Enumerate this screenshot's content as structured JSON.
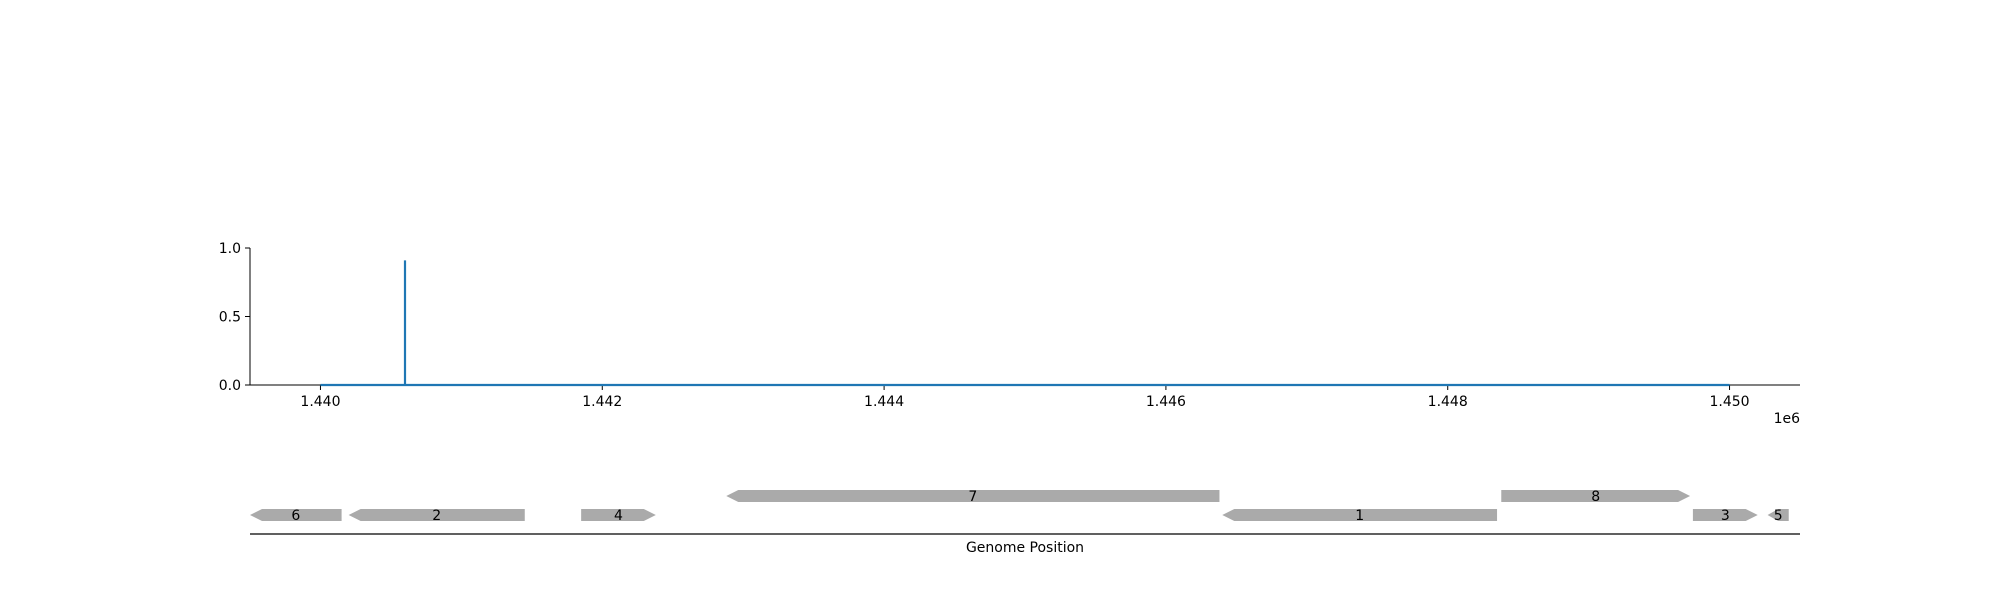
{
  "chart_data": [
    {
      "type": "line",
      "title": "",
      "xlabel": "",
      "ylabel": "",
      "xlim": [
        1439500,
        1450500
      ],
      "ylim": [
        0.0,
        1.0
      ],
      "x_offset_text": "1e6",
      "yticks": [
        0.0,
        0.5,
        1.0
      ],
      "ytick_labels": [
        "0.0",
        "0.5",
        "1.0"
      ],
      "xticks": [
        1440000,
        1442000,
        1444000,
        1446000,
        1448000,
        1450000
      ],
      "xtick_labels": [
        "1.440",
        "1.442",
        "1.444",
        "1.446",
        "1.448",
        "1.450"
      ],
      "grid": false,
      "series": [
        {
          "color": "#1f77b4",
          "x": [
            1440000,
            1440600,
            1440600,
            1440600,
            1450000
          ],
          "y": [
            0.0,
            0.0,
            0.91,
            0.0,
            0.0
          ]
        }
      ]
    },
    {
      "type": "gene-track",
      "xlabel": "Genome Position",
      "xlim": [
        1439500,
        1450500
      ],
      "feature_color": "#aaaaaa",
      "features": [
        {
          "label": "6",
          "start": 1439500,
          "end": 1440150,
          "strand": -1,
          "row": 0
        },
        {
          "label": "2",
          "start": 1440200,
          "end": 1441450,
          "strand": -1,
          "row": 0
        },
        {
          "label": "4",
          "start": 1441850,
          "end": 1442380,
          "strand": 1,
          "row": 0
        },
        {
          "label": "7",
          "start": 1442880,
          "end": 1446380,
          "strand": -1,
          "row": 1
        },
        {
          "label": "1",
          "start": 1446400,
          "end": 1448350,
          "strand": -1,
          "row": 0
        },
        {
          "label": "8",
          "start": 1448380,
          "end": 1449720,
          "strand": 1,
          "row": 1
        },
        {
          "label": "3",
          "start": 1449740,
          "end": 1450200,
          "strand": 1,
          "row": 0
        },
        {
          "label": "5",
          "start": 1450270,
          "end": 1450420,
          "strand": -1,
          "row": 0
        }
      ]
    }
  ]
}
